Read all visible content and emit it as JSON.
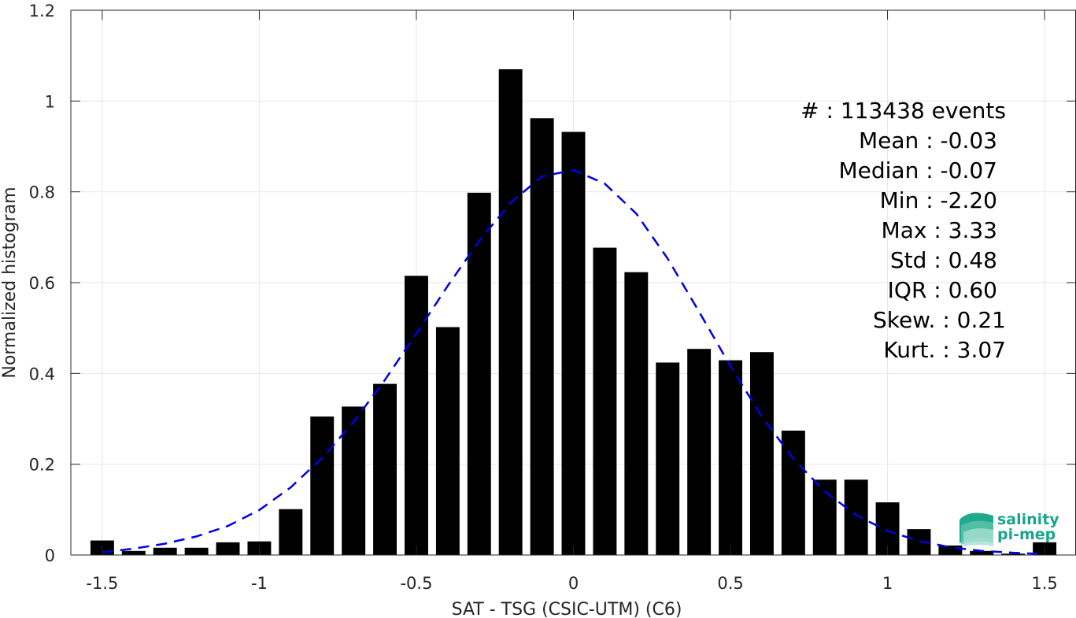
{
  "chart_data": {
    "type": "bar",
    "xlabel": "SAT - TSG (CSIC-UTM) (C6)",
    "ylabel": "Normalized histogram",
    "xlim": [
      -1.6,
      1.6
    ],
    "ylim": [
      0,
      1.2
    ],
    "grid": true,
    "xticks": [
      -1.5,
      -1,
      -0.5,
      0,
      0.5,
      1,
      1.5
    ],
    "xtick_labels": [
      "-1.5",
      "-1",
      "-0.5",
      "0",
      "0.5",
      "1",
      "1.5"
    ],
    "yticks": [
      0,
      0.2,
      0.4,
      0.6,
      0.8,
      1,
      1.2
    ],
    "ytick_labels": [
      "0",
      "0.2",
      "0.4",
      "0.6",
      "0.8",
      "1",
      "1.2"
    ],
    "bar_color": "#000000",
    "bins": {
      "centers": [
        -1.5,
        -1.4,
        -1.3,
        -1.2,
        -1.1,
        -1.0,
        -0.9,
        -0.8,
        -0.7,
        -0.6,
        -0.5,
        -0.4,
        -0.3,
        -0.2,
        -0.1,
        0.0,
        0.1,
        0.2,
        0.3,
        0.4,
        0.5,
        0.6,
        0.7,
        0.8,
        0.9,
        1.0,
        1.1,
        1.2,
        1.3,
        1.4,
        1.5
      ],
      "values": [
        0.032,
        0.009,
        0.016,
        0.016,
        0.028,
        0.03,
        0.101,
        0.305,
        0.327,
        0.377,
        0.615,
        0.502,
        0.798,
        1.07,
        0.962,
        0.932,
        0.677,
        0.623,
        0.424,
        0.454,
        0.429,
        0.447,
        0.274,
        0.166,
        0.166,
        0.116,
        0.057,
        0.021,
        0.009,
        0.003,
        0.028
      ]
    },
    "fit_curve": {
      "style": "dashed",
      "color": "#0000e6",
      "x": [
        -1.5,
        -1.4,
        -1.3,
        -1.2,
        -1.1,
        -1.0,
        -0.9,
        -0.8,
        -0.7,
        -0.6,
        -0.5,
        -0.4,
        -0.3,
        -0.2,
        -0.1,
        0.0,
        0.1,
        0.2,
        0.3,
        0.4,
        0.5,
        0.6,
        0.7,
        0.8,
        0.9,
        1.0,
        1.1,
        1.2,
        1.3,
        1.4,
        1.5
      ],
      "y": [
        0.006,
        0.014,
        0.025,
        0.041,
        0.064,
        0.099,
        0.149,
        0.214,
        0.293,
        0.386,
        0.488,
        0.593,
        0.692,
        0.776,
        0.834,
        0.848,
        0.818,
        0.752,
        0.653,
        0.536,
        0.416,
        0.305,
        0.212,
        0.14,
        0.088,
        0.053,
        0.031,
        0.017,
        0.009,
        0.005,
        0.002
      ]
    },
    "stats": [
      "#  : 113438 events",
      "Mean : -0.03",
      "Median : -0.07",
      "Min : -2.20",
      "Max : 3.33",
      "Std : 0.48",
      "IQR : 0.60",
      "Skew. : 0.21",
      "Kurt. : 3.07"
    ]
  },
  "logo": {
    "line1": "salinity",
    "line2": "pi-mep",
    "color": "#19a58c"
  }
}
